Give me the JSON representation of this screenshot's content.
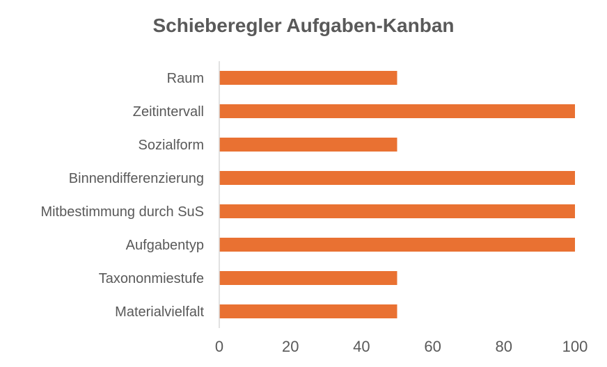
{
  "chart_data": {
    "type": "bar",
    "orientation": "horizontal",
    "title": "Schieberegler Aufgaben-Kanban",
    "categories": [
      "Raum",
      "Zeitintervall",
      "Sozialform",
      "Binnendifferenzierung",
      "Mitbestimmung durch SuS",
      "Aufgabentyp",
      "Taxononmiestufe",
      "Materialvielfalt"
    ],
    "values": [
      50,
      100,
      50,
      100,
      100,
      100,
      50,
      50
    ],
    "xlim": [
      0,
      100
    ],
    "xticks": [
      "0",
      "20",
      "40",
      "60",
      "80",
      "100"
    ],
    "grid": false,
    "bar_color": "#E97132",
    "xlabel": "",
    "ylabel": ""
  }
}
